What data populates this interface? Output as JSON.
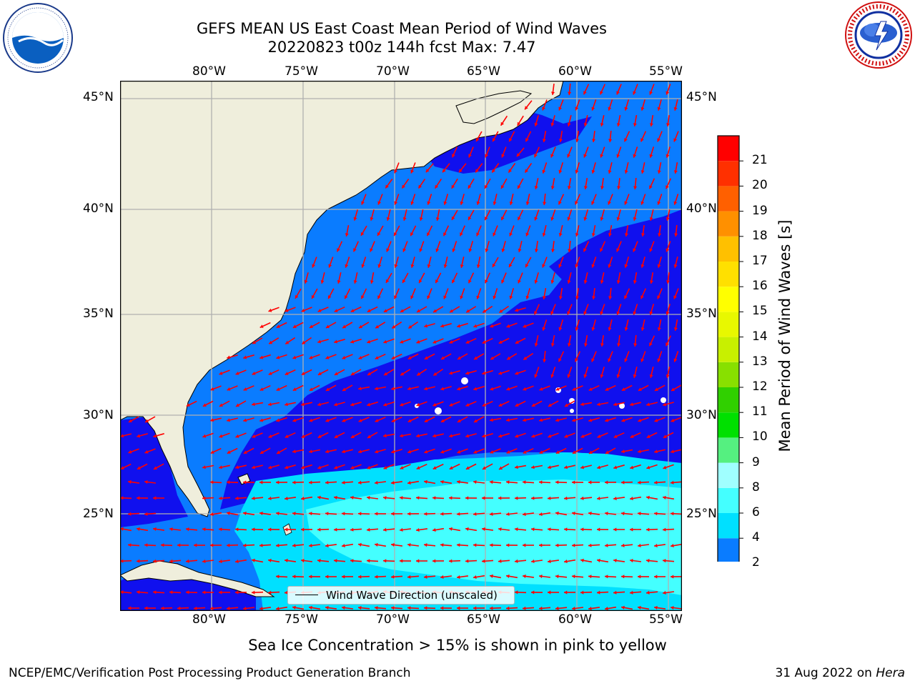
{
  "title": {
    "line1": "GEFS MEAN US East Coast Mean Period of Wind Waves",
    "line2": "20220823 t00z 144h fcst   Max: 7.47"
  },
  "logos": {
    "left": {
      "icon": "noaa-logo",
      "text": "NOAA"
    },
    "right": {
      "icon": "nws-logo",
      "text": "NATIONAL WEATHER SERVICE"
    }
  },
  "map": {
    "lon_labels": [
      "80°W",
      "75°W",
      "70°W",
      "65°W",
      "60°W",
      "55°W"
    ],
    "lat_labels": [
      "45°N",
      "40°N",
      "35°N",
      "30°N",
      "25°N"
    ],
    "legend_text": "Wind Wave Direction (unscaled)",
    "colors": {
      "land": "#efeedc",
      "coastline": "#000000",
      "grid": "#b0b0b0",
      "arrow": "#ff0000",
      "missing": "#ffffff"
    }
  },
  "colorbar": {
    "title": "Mean Period of Wind Waves [s]",
    "ticks": [
      "2",
      "4",
      "6",
      "8",
      "9",
      "10",
      "11",
      "12",
      "13",
      "14",
      "15",
      "16",
      "17",
      "18",
      "19",
      "20",
      "21"
    ],
    "under_color": "#1010ee",
    "colors": [
      "#0a7cff",
      "#00e0ff",
      "#44ffff",
      "#a0ffff",
      "#55f080",
      "#00e000",
      "#30d000",
      "#88e000",
      "#c8f000",
      "#e8f800",
      "#ffff00",
      "#ffe000",
      "#ffc000",
      "#ff9000",
      "#ff6000",
      "#ff3000",
      "#ff0000"
    ]
  },
  "fields": {
    "level_colors": {
      "lt2": "#1010ee",
      "2to4": "#0a7cff",
      "4to6": "#00e0ff",
      "6to8": "#44ffff"
    }
  },
  "footer": {
    "note": "Sea Ice Concentration > 15% is shown in pink to yellow",
    "left": "NCEP/EMC/Verification Post Processing Product Generation Branch",
    "right_date": "31 Aug 2022 on ",
    "right_machine": "Hera"
  }
}
